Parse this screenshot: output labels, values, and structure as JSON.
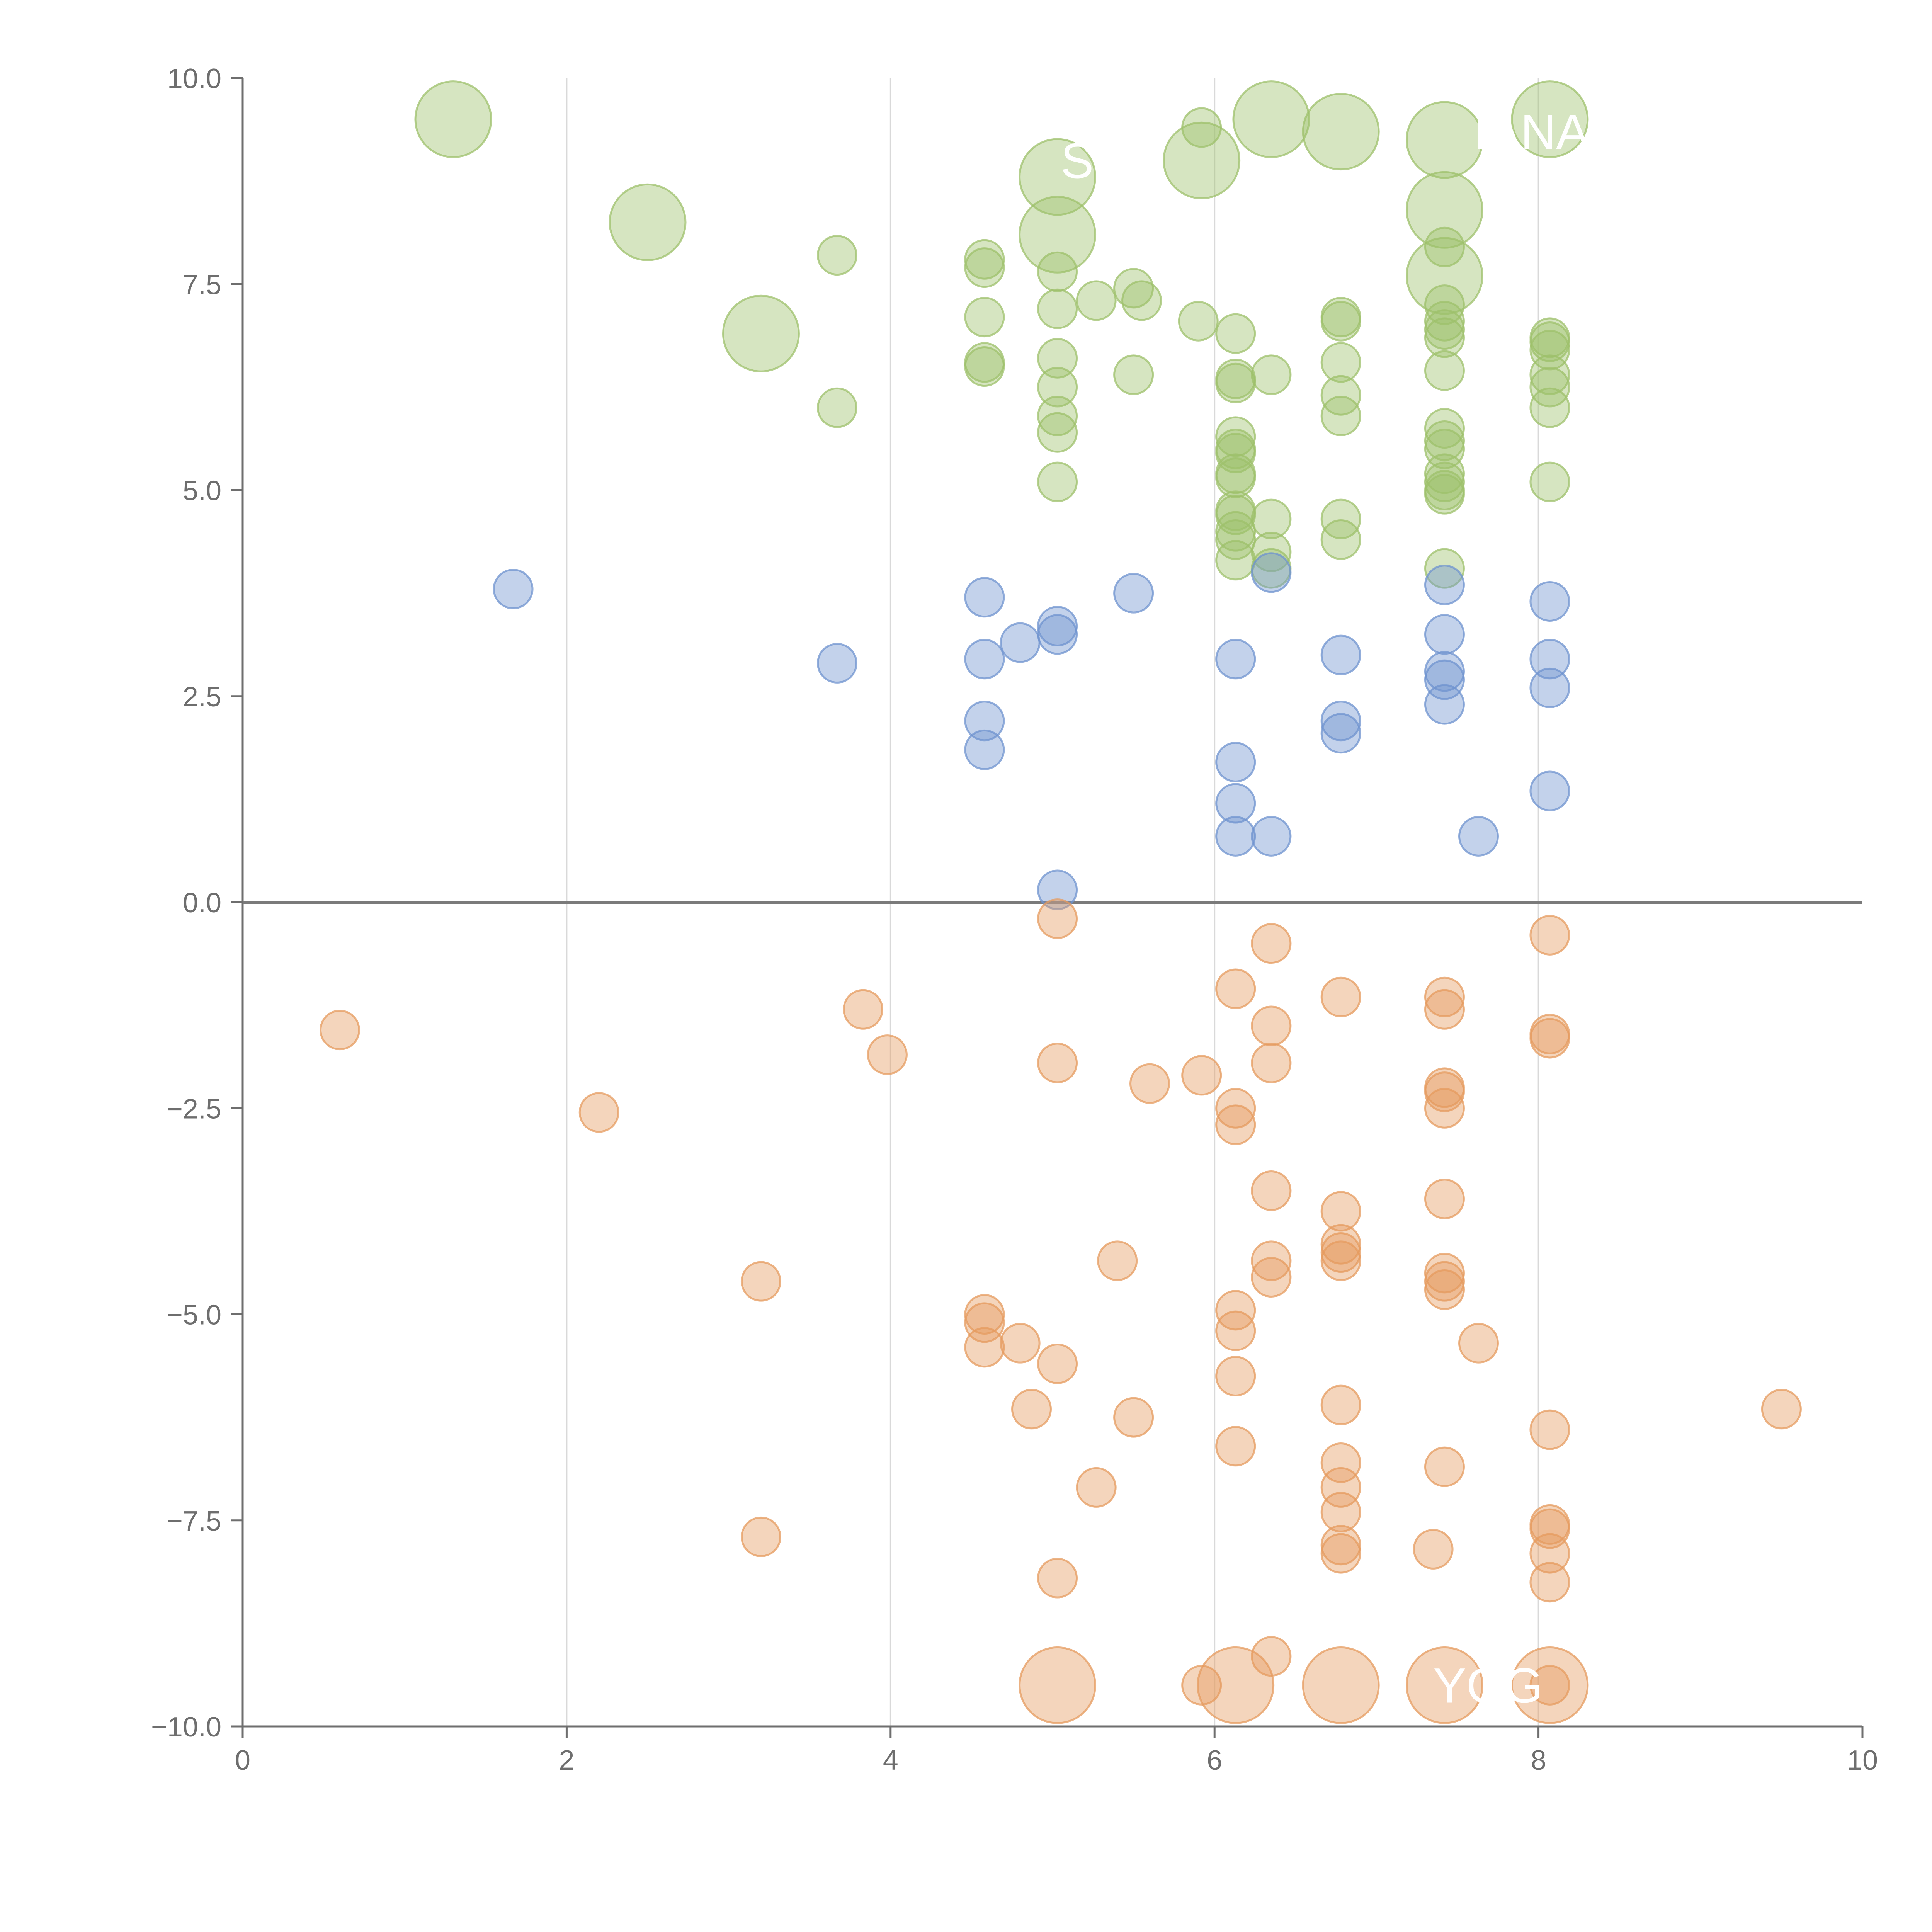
{
  "chart_data": {
    "type": "scatter",
    "title": "",
    "xlabel": "",
    "ylabel": "",
    "xlim": [
      0,
      10
    ],
    "ylim": [
      -10,
      10
    ],
    "x_ticks": [
      "0",
      "2",
      "4",
      "6",
      "8",
      "10"
    ],
    "y_ticks": [
      "−10.0",
      "−7.5",
      "−5.0",
      "−2.5",
      "0.0",
      "2.5",
      "5.0",
      "7.5",
      "10.0"
    ],
    "x_tick_values": [
      0,
      2,
      4,
      6,
      8,
      10
    ],
    "y_tick_values": [
      -10,
      -7.5,
      -5,
      -2.5,
      0,
      2.5,
      5,
      7.5,
      10
    ],
    "grid": "vertical",
    "zero_line": true,
    "colors": {
      "top": "#9dc06b",
      "middle": "#6f93cf",
      "bottom": "#e59b5f"
    },
    "series": [
      {
        "name": "top",
        "points": [
          {
            "x": 1.3,
            "y": 9.5,
            "s": 3
          },
          {
            "x": 2.5,
            "y": 8.25,
            "s": 3
          },
          {
            "x": 3.2,
            "y": 6.9,
            "s": 3
          },
          {
            "x": 3.67,
            "y": 7.85,
            "s": 1
          },
          {
            "x": 3.67,
            "y": 6.0,
            "s": 1
          },
          {
            "x": 4.58,
            "y": 7.8,
            "s": 1
          },
          {
            "x": 4.58,
            "y": 7.7,
            "s": 1
          },
          {
            "x": 4.58,
            "y": 7.1,
            "s": 1
          },
          {
            "x": 4.58,
            "y": 6.55,
            "s": 1
          },
          {
            "x": 4.58,
            "y": 6.5,
            "s": 1
          },
          {
            "x": 5.03,
            "y": 8.8,
            "s": 3
          },
          {
            "x": 5.03,
            "y": 8.1,
            "s": 3
          },
          {
            "x": 5.03,
            "y": 7.65,
            "s": 1
          },
          {
            "x": 5.03,
            "y": 7.2,
            "s": 1
          },
          {
            "x": 5.03,
            "y": 6.6,
            "s": 1
          },
          {
            "x": 5.03,
            "y": 6.25,
            "s": 1
          },
          {
            "x": 5.03,
            "y": 5.9,
            "s": 1
          },
          {
            "x": 5.03,
            "y": 5.7,
            "s": 1
          },
          {
            "x": 5.03,
            "y": 5.1,
            "s": 1
          },
          {
            "x": 5.27,
            "y": 7.3,
            "s": 1
          },
          {
            "x": 5.5,
            "y": 7.45,
            "s": 1
          },
          {
            "x": 5.5,
            "y": 6.4,
            "s": 1
          },
          {
            "x": 5.55,
            "y": 7.3,
            "s": 1
          },
          {
            "x": 5.9,
            "y": 7.05,
            "s": 1
          },
          {
            "x": 5.92,
            "y": 9.4,
            "s": 1
          },
          {
            "x": 5.92,
            "y": 9.0,
            "s": 3
          },
          {
            "x": 6.13,
            "y": 6.9,
            "s": 1
          },
          {
            "x": 6.13,
            "y": 6.35,
            "s": 1
          },
          {
            "x": 6.13,
            "y": 6.3,
            "s": 1
          },
          {
            "x": 6.13,
            "y": 5.65,
            "s": 1
          },
          {
            "x": 6.13,
            "y": 5.5,
            "s": 1
          },
          {
            "x": 6.13,
            "y": 5.45,
            "s": 1
          },
          {
            "x": 6.13,
            "y": 5.2,
            "s": 1
          },
          {
            "x": 6.13,
            "y": 5.15,
            "s": 1
          },
          {
            "x": 6.13,
            "y": 4.75,
            "s": 1
          },
          {
            "x": 6.13,
            "y": 4.7,
            "s": 1
          },
          {
            "x": 6.13,
            "y": 4.5,
            "s": 1
          },
          {
            "x": 6.13,
            "y": 4.4,
            "s": 1
          },
          {
            "x": 6.13,
            "y": 4.15,
            "s": 1
          },
          {
            "x": 6.35,
            "y": 9.5,
            "s": 3
          },
          {
            "x": 6.35,
            "y": 6.4,
            "s": 1
          },
          {
            "x": 6.35,
            "y": 4.65,
            "s": 1
          },
          {
            "x": 6.35,
            "y": 4.25,
            "s": 1
          },
          {
            "x": 6.35,
            "y": 4.05,
            "s": 1
          },
          {
            "x": 6.78,
            "y": 9.35,
            "s": 3
          },
          {
            "x": 6.78,
            "y": 7.1,
            "s": 1
          },
          {
            "x": 6.78,
            "y": 7.05,
            "s": 1
          },
          {
            "x": 6.78,
            "y": 6.55,
            "s": 1
          },
          {
            "x": 6.78,
            "y": 6.15,
            "s": 1
          },
          {
            "x": 6.78,
            "y": 5.9,
            "s": 1
          },
          {
            "x": 6.78,
            "y": 4.65,
            "s": 1
          },
          {
            "x": 6.78,
            "y": 4.4,
            "s": 1
          },
          {
            "x": 7.42,
            "y": 9.25,
            "s": 3
          },
          {
            "x": 7.42,
            "y": 8.4,
            "s": 3
          },
          {
            "x": 7.42,
            "y": 7.95,
            "s": 1
          },
          {
            "x": 7.42,
            "y": 7.6,
            "s": 3
          },
          {
            "x": 7.42,
            "y": 7.25,
            "s": 1
          },
          {
            "x": 7.42,
            "y": 7.05,
            "s": 1
          },
          {
            "x": 7.42,
            "y": 6.95,
            "s": 1
          },
          {
            "x": 7.42,
            "y": 6.85,
            "s": 1
          },
          {
            "x": 7.42,
            "y": 6.45,
            "s": 1
          },
          {
            "x": 7.42,
            "y": 5.75,
            "s": 1
          },
          {
            "x": 7.42,
            "y": 5.6,
            "s": 1
          },
          {
            "x": 7.42,
            "y": 5.5,
            "s": 1
          },
          {
            "x": 7.42,
            "y": 5.2,
            "s": 1
          },
          {
            "x": 7.42,
            "y": 5.1,
            "s": 1
          },
          {
            "x": 7.42,
            "y": 5.0,
            "s": 1
          },
          {
            "x": 7.42,
            "y": 4.95,
            "s": 1
          },
          {
            "x": 7.42,
            "y": 4.05,
            "s": 1
          },
          {
            "x": 8.07,
            "y": 9.5,
            "s": 3
          },
          {
            "x": 8.07,
            "y": 6.85,
            "s": 1
          },
          {
            "x": 8.07,
            "y": 6.8,
            "s": 1
          },
          {
            "x": 8.07,
            "y": 6.7,
            "s": 1
          },
          {
            "x": 8.07,
            "y": 6.4,
            "s": 1
          },
          {
            "x": 8.07,
            "y": 6.25,
            "s": 1
          },
          {
            "x": 8.07,
            "y": 6.0,
            "s": 1
          },
          {
            "x": 8.07,
            "y": 5.1,
            "s": 1
          }
        ]
      },
      {
        "name": "middle",
        "points": [
          {
            "x": 1.67,
            "y": 3.8,
            "s": 1
          },
          {
            "x": 3.67,
            "y": 2.9,
            "s": 1
          },
          {
            "x": 4.58,
            "y": 3.7,
            "s": 1
          },
          {
            "x": 4.58,
            "y": 2.95,
            "s": 1
          },
          {
            "x": 4.58,
            "y": 2.2,
            "s": 1
          },
          {
            "x": 4.58,
            "y": 1.85,
            "s": 1
          },
          {
            "x": 4.8,
            "y": 3.15,
            "s": 1
          },
          {
            "x": 5.03,
            "y": 3.35,
            "s": 1
          },
          {
            "x": 5.03,
            "y": 3.25,
            "s": 1
          },
          {
            "x": 5.03,
            "y": 0.15,
            "s": 1
          },
          {
            "x": 5.5,
            "y": 3.75,
            "s": 1
          },
          {
            "x": 6.13,
            "y": 2.95,
            "s": 1
          },
          {
            "x": 6.13,
            "y": 1.7,
            "s": 1
          },
          {
            "x": 6.13,
            "y": 1.2,
            "s": 1
          },
          {
            "x": 6.13,
            "y": 0.8,
            "s": 1
          },
          {
            "x": 6.35,
            "y": 4.0,
            "s": 1
          },
          {
            "x": 6.35,
            "y": 0.8,
            "s": 1
          },
          {
            "x": 6.78,
            "y": 3.0,
            "s": 1
          },
          {
            "x": 6.78,
            "y": 2.2,
            "s": 1
          },
          {
            "x": 6.78,
            "y": 2.05,
            "s": 1
          },
          {
            "x": 7.42,
            "y": 3.85,
            "s": 1
          },
          {
            "x": 7.42,
            "y": 3.25,
            "s": 1
          },
          {
            "x": 7.42,
            "y": 2.8,
            "s": 1
          },
          {
            "x": 7.42,
            "y": 2.7,
            "s": 1
          },
          {
            "x": 7.42,
            "y": 2.4,
            "s": 1
          },
          {
            "x": 7.63,
            "y": 0.8,
            "s": 1
          },
          {
            "x": 8.07,
            "y": 3.65,
            "s": 1
          },
          {
            "x": 8.07,
            "y": 2.95,
            "s": 1
          },
          {
            "x": 8.07,
            "y": 2.6,
            "s": 1
          },
          {
            "x": 8.07,
            "y": 1.35,
            "s": 1
          }
        ]
      },
      {
        "name": "bottom",
        "points": [
          {
            "x": 0.6,
            "y": -1.55,
            "s": 1
          },
          {
            "x": 2.2,
            "y": -2.55,
            "s": 1
          },
          {
            "x": 3.2,
            "y": -4.6,
            "s": 1
          },
          {
            "x": 3.2,
            "y": -7.7,
            "s": 1
          },
          {
            "x": 3.83,
            "y": -1.3,
            "s": 1
          },
          {
            "x": 3.98,
            "y": -1.85,
            "s": 1
          },
          {
            "x": 4.58,
            "y": -5.0,
            "s": 1
          },
          {
            "x": 4.58,
            "y": -5.1,
            "s": 1
          },
          {
            "x": 4.58,
            "y": -5.4,
            "s": 1
          },
          {
            "x": 4.8,
            "y": -5.35,
            "s": 1
          },
          {
            "x": 4.87,
            "y": -6.15,
            "s": 1
          },
          {
            "x": 5.03,
            "y": -0.2,
            "s": 1
          },
          {
            "x": 5.03,
            "y": -1.95,
            "s": 1
          },
          {
            "x": 5.03,
            "y": -5.6,
            "s": 1
          },
          {
            "x": 5.03,
            "y": -8.2,
            "s": 1
          },
          {
            "x": 5.03,
            "y": -9.5,
            "s": 3
          },
          {
            "x": 5.27,
            "y": -7.1,
            "s": 1
          },
          {
            "x": 5.4,
            "y": -4.35,
            "s": 1
          },
          {
            "x": 5.5,
            "y": -6.25,
            "s": 1
          },
          {
            "x": 5.6,
            "y": -2.2,
            "s": 1
          },
          {
            "x": 5.92,
            "y": -2.1,
            "s": 1
          },
          {
            "x": 5.92,
            "y": -9.5,
            "s": 1
          },
          {
            "x": 6.13,
            "y": -1.05,
            "s": 1
          },
          {
            "x": 6.13,
            "y": -2.5,
            "s": 1
          },
          {
            "x": 6.13,
            "y": -2.7,
            "s": 1
          },
          {
            "x": 6.13,
            "y": -4.95,
            "s": 1
          },
          {
            "x": 6.13,
            "y": -5.2,
            "s": 1
          },
          {
            "x": 6.13,
            "y": -5.75,
            "s": 1
          },
          {
            "x": 6.13,
            "y": -6.6,
            "s": 1
          },
          {
            "x": 6.13,
            "y": -9.5,
            "s": 3
          },
          {
            "x": 6.35,
            "y": -0.5,
            "s": 1
          },
          {
            "x": 6.35,
            "y": -1.5,
            "s": 1
          },
          {
            "x": 6.35,
            "y": -1.95,
            "s": 1
          },
          {
            "x": 6.35,
            "y": -3.5,
            "s": 1
          },
          {
            "x": 6.35,
            "y": -4.35,
            "s": 1
          },
          {
            "x": 6.35,
            "y": -4.55,
            "s": 1
          },
          {
            "x": 6.35,
            "y": -9.15,
            "s": 1
          },
          {
            "x": 6.78,
            "y": -1.15,
            "s": 1
          },
          {
            "x": 6.78,
            "y": -3.75,
            "s": 1
          },
          {
            "x": 6.78,
            "y": -4.15,
            "s": 1
          },
          {
            "x": 6.78,
            "y": -4.25,
            "s": 1
          },
          {
            "x": 6.78,
            "y": -4.35,
            "s": 1
          },
          {
            "x": 6.78,
            "y": -6.1,
            "s": 1
          },
          {
            "x": 6.78,
            "y": -6.8,
            "s": 1
          },
          {
            "x": 6.78,
            "y": -7.1,
            "s": 1
          },
          {
            "x": 6.78,
            "y": -7.4,
            "s": 1
          },
          {
            "x": 6.78,
            "y": -7.8,
            "s": 1
          },
          {
            "x": 6.78,
            "y": -7.9,
            "s": 1
          },
          {
            "x": 6.78,
            "y": -9.5,
            "s": 3
          },
          {
            "x": 7.35,
            "y": -7.85,
            "s": 1
          },
          {
            "x": 7.42,
            "y": -1.15,
            "s": 1
          },
          {
            "x": 7.42,
            "y": -1.3,
            "s": 1
          },
          {
            "x": 7.42,
            "y": -2.25,
            "s": 1
          },
          {
            "x": 7.42,
            "y": -2.3,
            "s": 1
          },
          {
            "x": 7.42,
            "y": -2.5,
            "s": 1
          },
          {
            "x": 7.42,
            "y": -3.6,
            "s": 1
          },
          {
            "x": 7.42,
            "y": -4.5,
            "s": 1
          },
          {
            "x": 7.42,
            "y": -4.6,
            "s": 1
          },
          {
            "x": 7.42,
            "y": -4.7,
            "s": 1
          },
          {
            "x": 7.42,
            "y": -6.85,
            "s": 1
          },
          {
            "x": 7.42,
            "y": -9.5,
            "s": 3
          },
          {
            "x": 7.63,
            "y": -5.35,
            "s": 1
          },
          {
            "x": 8.07,
            "y": -0.4,
            "s": 1
          },
          {
            "x": 8.07,
            "y": -1.6,
            "s": 1
          },
          {
            "x": 8.07,
            "y": -1.65,
            "s": 1
          },
          {
            "x": 8.07,
            "y": -6.4,
            "s": 1
          },
          {
            "x": 8.07,
            "y": -7.55,
            "s": 1
          },
          {
            "x": 8.07,
            "y": -7.6,
            "s": 1
          },
          {
            "x": 8.07,
            "y": -7.9,
            "s": 1
          },
          {
            "x": 8.07,
            "y": -8.25,
            "s": 1
          },
          {
            "x": 8.07,
            "y": -9.5,
            "s": 3
          },
          {
            "x": 8.07,
            "y": -9.5,
            "s": 1
          },
          {
            "x": 9.5,
            "y": -6.15,
            "s": 1
          }
        ]
      }
    ],
    "annotations": [
      {
        "text": "SI",
        "x": 5.05,
        "y": 9.0
      },
      {
        "text": "IANA",
        "x": 7.6,
        "y": 9.35
      },
      {
        "text": "YGG",
        "x": 7.35,
        "y": -9.5
      }
    ]
  }
}
